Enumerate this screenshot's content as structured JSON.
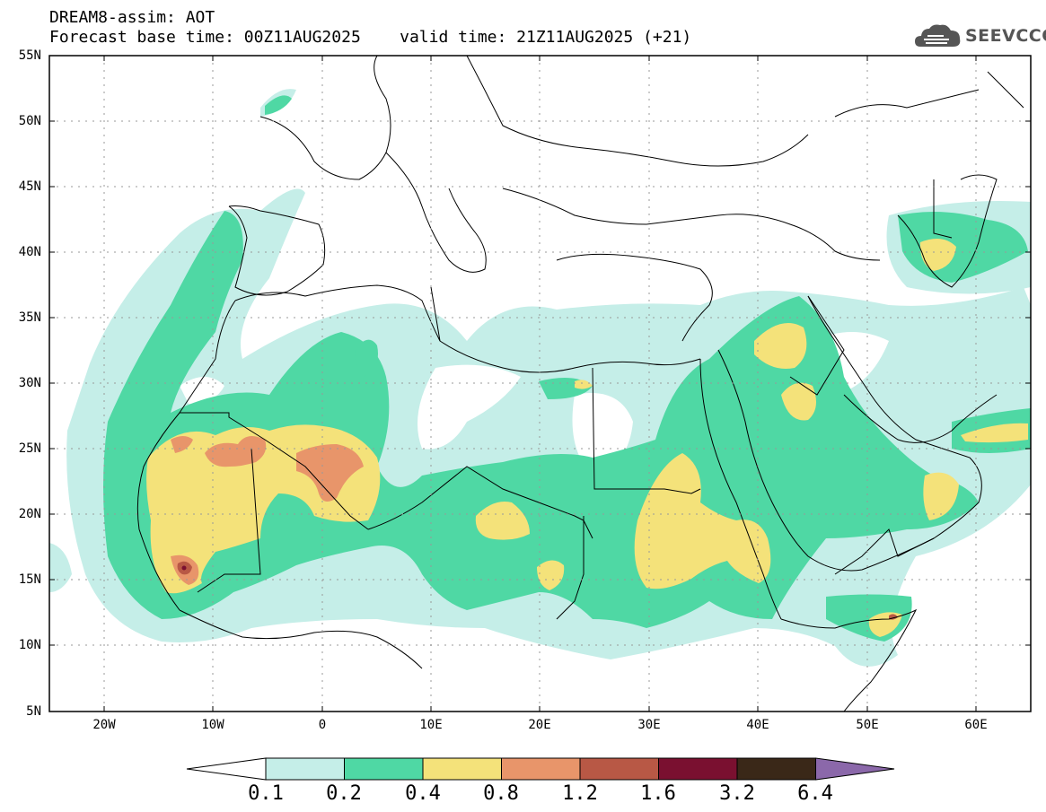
{
  "header": {
    "title_line1": "DREAM8-assim: AOT",
    "title_line2": "Forecast base time: 00Z11AUG2025    valid time: 21Z11AUG2025 (+21)"
  },
  "logo": {
    "text": "SEEVCCC",
    "icon": "cloud-logo-icon"
  },
  "map": {
    "lat_labels": [
      "55N",
      "50N",
      "45N",
      "40N",
      "35N",
      "30N",
      "25N",
      "20N",
      "15N",
      "10N",
      "5N"
    ],
    "lon_labels": [
      "20W",
      "10W",
      "0",
      "10E",
      "20E",
      "30E",
      "40E",
      "50E",
      "60E"
    ],
    "colors": {
      "land_border": "#000000",
      "grid": "#999999"
    }
  },
  "colorbar": {
    "labels": [
      "0.1",
      "0.2",
      "0.4",
      "0.8",
      "1.2",
      "1.6",
      "3.2",
      "6.4"
    ],
    "colors": [
      "#ffffff",
      "#c5eee8",
      "#4fd8a4",
      "#f4e27a",
      "#e8956a",
      "#b85845",
      "#7a1030",
      "#3a2818",
      "#8b68aa"
    ]
  }
}
